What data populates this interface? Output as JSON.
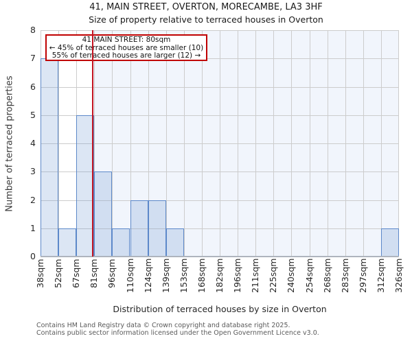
{
  "page": {
    "title_line1": "41, MAIN STREET, OVERTON, MORECAMBE, LA3 3HF",
    "title_line2": "Size of property relative to terraced houses in Overton"
  },
  "annotation": {
    "line1": "41 MAIN STREET: 80sqm",
    "line2": "← 45% of terraced houses are smaller (10)",
    "line3": "55% of terraced houses are larger (12) →"
  },
  "footer": {
    "line1": "Contains HM Land Registry data © Crown copyright and database right 2025.",
    "line2": "Contains public sector information licensed under the Open Government Licence v3.0."
  },
  "chart_data": {
    "type": "bar",
    "title": "41, MAIN STREET, OVERTON, MORECAMBE, LA3 3HF",
    "subtitle": "Size of property relative to terraced houses in Overton",
    "xlabel": "Distribution of terraced houses by size in Overton",
    "ylabel": "Number of terraced properties",
    "ylim": [
      0,
      8
    ],
    "yticks": [
      0,
      1,
      2,
      3,
      4,
      5,
      6,
      7,
      8
    ],
    "x_tick_labels": [
      "38sqm",
      "52sqm",
      "67sqm",
      "81sqm",
      "96sqm",
      "110sqm",
      "124sqm",
      "139sqm",
      "153sqm",
      "168sqm",
      "182sqm",
      "196sqm",
      "211sqm",
      "225sqm",
      "240sqm",
      "254sqm",
      "268sqm",
      "283sqm",
      "297sqm",
      "312sqm",
      "326sqm"
    ],
    "bin_edges_sqm": [
      38,
      52,
      67,
      81,
      96,
      110,
      124,
      139,
      153,
      168,
      182,
      196,
      211,
      225,
      240,
      254,
      268,
      283,
      297,
      312,
      326
    ],
    "values": [
      7,
      1,
      5,
      3,
      1,
      2,
      2,
      1,
      0,
      0,
      0,
      0,
      0,
      0,
      0,
      0,
      0,
      0,
      0,
      1
    ],
    "marker": {
      "label": "41 MAIN STREET",
      "value_sqm": 80,
      "smaller_pct": 45,
      "smaller_count": 10,
      "larger_pct": 55,
      "larger_count": 12
    },
    "grid": true,
    "legend": "none",
    "colors": {
      "bar_fill": "rgba(109,151,211,0.24)",
      "bar_edge": "#5c88c9",
      "marker_line": "#c41420",
      "annotation_border": "#c00000",
      "band_fill": "#f1f5fc",
      "gridline": "#cccccc",
      "axis_line": "#aeb4bd"
    }
  }
}
